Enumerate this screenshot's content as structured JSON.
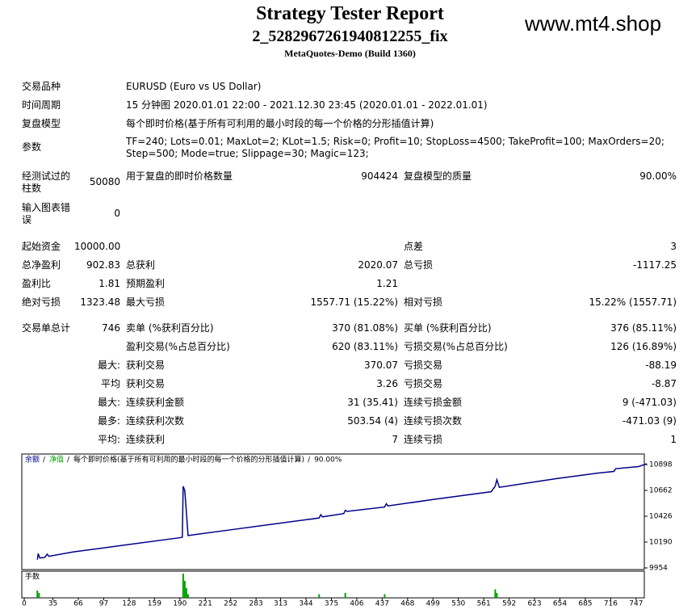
{
  "header": {
    "title": "Strategy Tester Report",
    "subtitle": "2_5282967261940812255_fix",
    "build": "MetaQuotes-Demo (Build 1360)",
    "site": "www.mt4.shop"
  },
  "info": [
    {
      "label": "交易品种",
      "text": "EURUSD (Euro vs US Dollar)"
    },
    {
      "label": "时间周期",
      "text": "15 分钟图 2020.01.01 22:00 - 2021.12.30 23:45 (2020.01.01 - 2022.01.01)"
    },
    {
      "label": "复盘模型",
      "text": "每个即时价格(基于所有可利用的最小时段的每一个价格的分形插值计算)"
    },
    {
      "label": "参数",
      "text": "TF=240; Lots=0.01; MaxLot=2; KLot=1.5; Risk=0; Profit=10; StopLoss=4500; TakeProfit=100; MaxOrders=20; Step=500; Mode=true; Slippage=30; Magic=123;"
    }
  ],
  "stats": [
    {
      "label": "经测试过的柱数",
      "value": "50080",
      "label2": "用于复盘的即时价格数量",
      "value2": "904424",
      "label3": "复盘模型的质量",
      "value3": "90.00%"
    },
    {
      "label": "输入图表错误",
      "value": "0"
    },
    {
      "label": "起始资金",
      "value": "10000.00",
      "label3": "点差",
      "value3": "3"
    },
    {
      "label": "总净盈利",
      "value": "902.83",
      "label2": "总获利",
      "value2": "2020.07",
      "label3": "总亏损",
      "value3": "-1117.25"
    },
    {
      "label": "盈利比",
      "value": "1.81",
      "label2": "预期盈利",
      "value2": "1.21"
    },
    {
      "label": "绝对亏损",
      "value": "1323.48",
      "label2": "最大亏损",
      "value2": "1557.71 (15.22%)",
      "label3": "相对亏损",
      "value3": "15.22% (1557.71)"
    },
    {
      "label": "交易单总计",
      "value": "746",
      "label2": "卖单 (%获利百分比)",
      "value2": "370 (81.08%)",
      "label3": "买单 (%获利百分比)",
      "value3": "376 (85.11%)"
    },
    {
      "label2": "盈利交易(%占总百分比)",
      "value2": "620 (83.11%)",
      "label3": "亏损交易(%占总百分比)",
      "value3": "126 (16.89%)"
    },
    {
      "value": "最大:",
      "label2": "获利交易",
      "value2": "370.07",
      "label3": "亏损交易",
      "value3": "-88.19"
    },
    {
      "value": "平均",
      "label2": "获利交易",
      "value2": "3.26",
      "label3": "亏损交易",
      "value3": "-8.87"
    },
    {
      "value": "最大:",
      "label2": "连续获利金额",
      "value2": "31 (35.41)",
      "label3": "连续亏损金额",
      "value3": "9 (-471.03)"
    },
    {
      "value": "最多:",
      "label2": "连续获利次数",
      "value2": "503.54 (4)",
      "label3": "连续亏损次数",
      "value3": "-471.03 (9)"
    },
    {
      "value": "平均:",
      "label2": "连续获利",
      "value2": "7",
      "label3": "连续亏损",
      "value3": "1"
    }
  ],
  "chart_data": {
    "type": "line",
    "legend": [
      "余额",
      "净值",
      "每个即时价格(基于所有可利用的最小时段的每一个价格的分形插值计算)",
      "90.00%"
    ],
    "x": [
      16,
      17,
      19,
      25,
      28,
      30,
      60,
      120,
      190,
      193,
      194,
      196,
      200,
      250,
      300,
      360,
      362,
      364,
      390,
      392,
      394,
      440,
      442,
      444,
      500,
      570,
      575,
      577,
      580,
      650,
      700,
      720,
      722,
      750,
      760
    ],
    "series": [
      {
        "name": "余额",
        "color": "#00008b",
        "values": [
          10030,
          10085,
          10045,
          10050,
          10080,
          10060,
          10100,
          10160,
          10230,
          10235,
          10700,
          10660,
          10250,
          10300,
          10350,
          10410,
          10440,
          10420,
          10450,
          10480,
          10470,
          10510,
          10540,
          10520,
          10580,
          10650,
          10700,
          10760,
          10690,
          10770,
          10820,
          10835,
          10860,
          10880,
          10905
        ]
      }
    ],
    "xlim": [
      -3,
      757
    ],
    "ylim": [
      9939,
      10994
    ],
    "xticks": [
      0,
      35,
      66,
      97,
      128,
      159,
      190,
      221,
      252,
      283,
      313,
      344,
      375,
      406,
      437,
      468,
      499,
      530,
      561,
      592,
      623,
      654,
      685,
      716,
      747
    ],
    "yticks": [
      9954,
      10190,
      10426,
      10662,
      10898
    ],
    "volume": {
      "label": "手数",
      "color": "#00a000",
      "x": [
        16,
        18,
        194,
        196,
        198,
        200,
        360,
        392,
        440,
        575,
        577
      ],
      "values": [
        0.3,
        0.2,
        1,
        0.7,
        0.4,
        0.15,
        0.15,
        0.2,
        0.15,
        0.35,
        0.2
      ]
    }
  }
}
